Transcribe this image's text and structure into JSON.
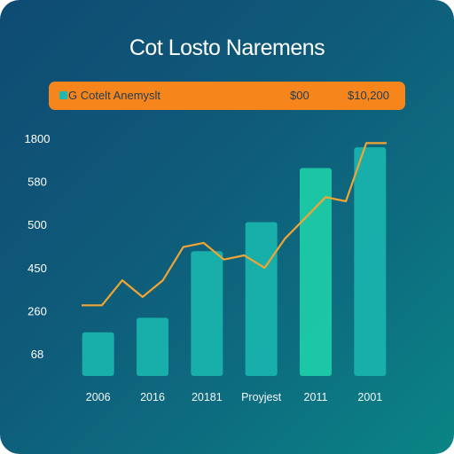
{
  "chart_data": {
    "type": "bar",
    "title": "Cot Losto Naremens",
    "legend": {
      "label": "G Cotelt Anemyslt",
      "value_1": "$00",
      "value_2": "$10,200",
      "swatch_color": "#1fb9b4",
      "background": "#f6861c"
    },
    "y_tick_labels": [
      "1800",
      "580",
      "500",
      "450",
      "260",
      "68"
    ],
    "categories": [
      "2006",
      "2016",
      "20181",
      "Proyjest",
      "2011",
      "2001"
    ],
    "values": [
      1.05,
      1.4,
      3.0,
      3.7,
      5.0,
      5.5
    ],
    "line_values": [
      1.7,
      1.7,
      2.3,
      1.9,
      2.3,
      3.1,
      3.2,
      2.8,
      2.9,
      2.6,
      3.3,
      3.8,
      4.3,
      4.2,
      5.6,
      5.6
    ],
    "ylim": [
      0,
      5.8
    ],
    "grid": false,
    "legend_position": "top",
    "colors": {
      "bars": "#19b2ad",
      "bar_highlight": "#1ecba6",
      "line": "#f2a433",
      "text": "#ffffff"
    }
  }
}
